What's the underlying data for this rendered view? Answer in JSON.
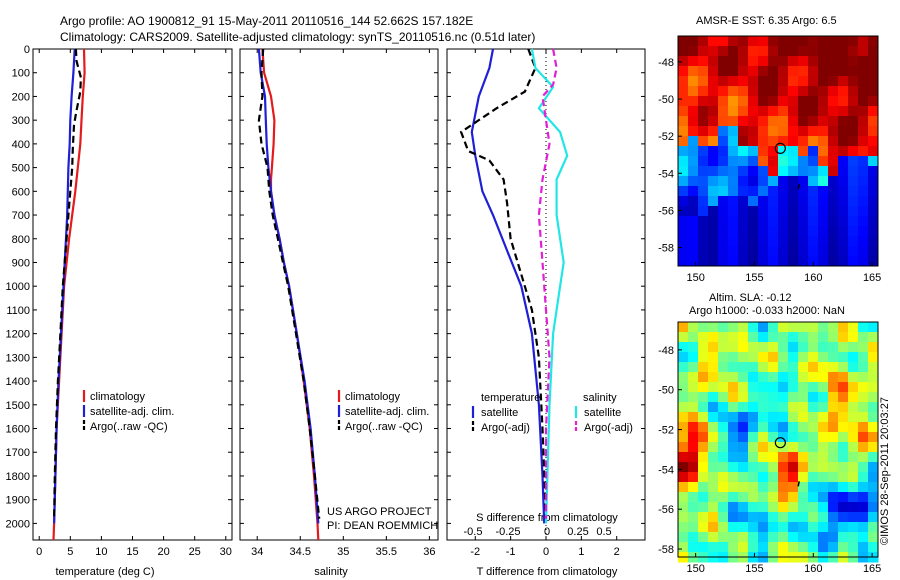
{
  "title": {
    "line1": "Argo profile: AO 1900812_91 15-May-2011 20110516_144 52.662S 157.182E",
    "line2": "Climatology: CARS2009. Satellite-adjusted climatology: synTS_20110516.nc (0.51d later)"
  },
  "colors": {
    "red": "#e41a1c",
    "blue": "#1f1fd6",
    "cyan": "#22e6e6",
    "magenta": "#e11fd6",
    "black": "#000000"
  },
  "chart_data": [
    {
      "type": "line",
      "id": "temperature",
      "xlabel": "temperature (deg C)",
      "ylabel": "",
      "xlim": [
        -1,
        31
      ],
      "ylim": [
        2070,
        0
      ],
      "xticks": [
        0,
        5,
        10,
        15,
        20,
        25,
        30
      ],
      "yticks": [
        0,
        100,
        200,
        300,
        400,
        500,
        600,
        700,
        800,
        900,
        1000,
        1100,
        1200,
        1300,
        1400,
        1500,
        1600,
        1700,
        1800,
        1900,
        2000
      ],
      "legend": [
        "climatology",
        "satellite-adj. clim.",
        "Argo(..raw -QC)"
      ],
      "series": [
        {
          "name": "climatology",
          "color": "red",
          "style": "solid",
          "points": [
            [
              7.2,
              0
            ],
            [
              7.3,
              100
            ],
            [
              7.0,
              200
            ],
            [
              6.8,
              300
            ],
            [
              6.6,
              400
            ],
            [
              6.2,
              500
            ],
            [
              5.8,
              600
            ],
            [
              5.3,
              700
            ],
            [
              4.8,
              800
            ],
            [
              4.4,
              900
            ],
            [
              4.0,
              1000
            ],
            [
              3.6,
              1200
            ],
            [
              3.2,
              1400
            ],
            [
              2.8,
              1600
            ],
            [
              2.6,
              1800
            ],
            [
              2.4,
              2000
            ],
            [
              2.3,
              2070
            ]
          ]
        },
        {
          "name": "satellite-adj. clim.",
          "color": "blue",
          "style": "solid",
          "points": [
            [
              5.7,
              0
            ],
            [
              5.5,
              100
            ],
            [
              5.2,
              200
            ],
            [
              5.0,
              300
            ],
            [
              4.9,
              400
            ],
            [
              4.7,
              500
            ],
            [
              4.6,
              600
            ],
            [
              4.5,
              700
            ],
            [
              4.3,
              800
            ],
            [
              4.1,
              900
            ],
            [
              3.9,
              1000
            ],
            [
              3.5,
              1200
            ],
            [
              3.1,
              1400
            ],
            [
              2.8,
              1600
            ],
            [
              2.6,
              1800
            ],
            [
              2.4,
              2000
            ]
          ]
        },
        {
          "name": "Argo(..raw -QC)",
          "color": "black",
          "style": "dashed",
          "points": [
            [
              5.9,
              0
            ],
            [
              6.0,
              50
            ],
            [
              6.7,
              120
            ],
            [
              6.6,
              180
            ],
            [
              6.0,
              260
            ],
            [
              5.6,
              320
            ],
            [
              5.4,
              420
            ],
            [
              5.3,
              500
            ],
            [
              5.0,
              600
            ],
            [
              4.7,
              700
            ],
            [
              4.4,
              800
            ],
            [
              4.1,
              900
            ],
            [
              3.8,
              1000
            ],
            [
              3.4,
              1200
            ],
            [
              3.0,
              1400
            ],
            [
              2.7,
              1600
            ],
            [
              2.5,
              1800
            ],
            [
              2.4,
              1980
            ]
          ]
        }
      ]
    },
    {
      "type": "line",
      "id": "salinity",
      "xlabel": "salinity",
      "ylabel": "",
      "xlim": [
        33.8,
        36.1
      ],
      "ylim": [
        2070,
        0
      ],
      "xticks": [
        34,
        34.5,
        35,
        35.5,
        36
      ],
      "legend": [
        "climatology",
        "satellite-adj. clim.",
        "Argo(..raw -QC)"
      ],
      "annotation": [
        "US ARGO PROJECT",
        "PI: DEAN ROEMMICH"
      ],
      "series": [
        {
          "name": "climatology",
          "color": "red",
          "style": "solid",
          "points": [
            [
              34.06,
              0
            ],
            [
              34.08,
              100
            ],
            [
              34.16,
              200
            ],
            [
              34.2,
              300
            ],
            [
              34.19,
              400
            ],
            [
              34.17,
              500
            ],
            [
              34.16,
              550
            ],
            [
              34.16,
              600
            ],
            [
              34.2,
              700
            ],
            [
              34.26,
              800
            ],
            [
              34.31,
              900
            ],
            [
              34.37,
              1000
            ],
            [
              34.46,
              1200
            ],
            [
              34.54,
              1400
            ],
            [
              34.61,
              1600
            ],
            [
              34.66,
              1800
            ],
            [
              34.7,
              2000
            ],
            [
              34.71,
              2070
            ]
          ]
        },
        {
          "name": "satellite-adj. clim.",
          "color": "blue",
          "style": "solid",
          "points": [
            [
              34.02,
              0
            ],
            [
              34.04,
              100
            ],
            [
              34.09,
              200
            ],
            [
              34.1,
              300
            ],
            [
              34.11,
              400
            ],
            [
              34.13,
              500
            ],
            [
              34.16,
              600
            ],
            [
              34.2,
              700
            ],
            [
              34.26,
              800
            ],
            [
              34.31,
              900
            ],
            [
              34.37,
              1000
            ],
            [
              34.46,
              1200
            ],
            [
              34.55,
              1400
            ],
            [
              34.62,
              1600
            ],
            [
              34.67,
              1800
            ],
            [
              34.71,
              2000
            ]
          ]
        },
        {
          "name": "Argo(..raw -QC)",
          "color": "black",
          "style": "dashed",
          "points": [
            [
              34.07,
              0
            ],
            [
              34.05,
              100
            ],
            [
              34.06,
              200
            ],
            [
              34.02,
              300
            ],
            [
              34.05,
              400
            ],
            [
              34.12,
              500
            ],
            [
              34.14,
              600
            ],
            [
              34.18,
              700
            ],
            [
              34.24,
              800
            ],
            [
              34.3,
              900
            ],
            [
              34.36,
              1000
            ],
            [
              34.45,
              1200
            ],
            [
              34.54,
              1400
            ],
            [
              34.61,
              1600
            ],
            [
              34.67,
              1800
            ],
            [
              34.72,
              1980
            ]
          ]
        }
      ]
    },
    {
      "type": "line",
      "id": "difference",
      "xlabel": "T difference from climatology",
      "ylabel": "",
      "xlim": [
        -2.8,
        2.8
      ],
      "ylim": [
        2070,
        0
      ],
      "xticks": [
        -2,
        -1,
        0,
        1,
        2
      ],
      "top_axis_label": "S difference from climatology",
      "top_xticks": [
        "-0.5",
        "-0.25",
        "0",
        "0.25",
        "0.5"
      ],
      "legend_header_left": "temperature",
      "legend_header_right": "salinity",
      "legend_left": [
        "satellite",
        "Argo(-adj)"
      ],
      "legend_right": [
        "satellite",
        "Argo(-adj)"
      ],
      "series": [
        {
          "name": "satellite",
          "group": "temperature",
          "color": "blue",
          "style": "solid",
          "points": [
            [
              -1.5,
              0
            ],
            [
              -1.6,
              80
            ],
            [
              -1.9,
              200
            ],
            [
              -2.1,
              350
            ],
            [
              -2.0,
              450
            ],
            [
              -1.8,
              600
            ],
            [
              -1.5,
              700
            ],
            [
              -1.1,
              850
            ],
            [
              -0.7,
              1000
            ],
            [
              -0.4,
              1200
            ],
            [
              -0.2,
              1500
            ],
            [
              -0.1,
              1800
            ],
            [
              -0.05,
              2000
            ]
          ]
        },
        {
          "name": "Argo(-adj)",
          "group": "temperature",
          "color": "black",
          "style": "dashed",
          "points": [
            [
              -0.5,
              0
            ],
            [
              -0.3,
              80
            ],
            [
              -0.6,
              180
            ],
            [
              -1.4,
              250
            ],
            [
              -2.4,
              350
            ],
            [
              -2.2,
              430
            ],
            [
              -1.6,
              470
            ],
            [
              -1.2,
              550
            ],
            [
              -1.1,
              650
            ],
            [
              -1.0,
              800
            ],
            [
              -0.8,
              900
            ],
            [
              -0.4,
              1100
            ],
            [
              -0.2,
              1300
            ],
            [
              -0.1,
              1600
            ],
            [
              0.0,
              1980
            ]
          ]
        },
        {
          "name": "satellite",
          "group": "salinity",
          "color": "cyan",
          "style": "solid",
          "points": [
            [
              -0.4,
              0
            ],
            [
              -0.3,
              80
            ],
            [
              0.2,
              160
            ],
            [
              -0.2,
              250
            ],
            [
              0.4,
              350
            ],
            [
              0.6,
              450
            ],
            [
              0.3,
              550
            ],
            [
              0.3,
              700
            ],
            [
              0.5,
              900
            ],
            [
              0.4,
              1000
            ],
            [
              0.2,
              1200
            ],
            [
              0.1,
              1500
            ],
            [
              0.0,
              2000
            ]
          ]
        },
        {
          "name": "Argo(-adj)",
          "group": "salinity",
          "color": "magenta",
          "style": "dashed",
          "points": [
            [
              0.2,
              0
            ],
            [
              0.3,
              80
            ],
            [
              0.2,
              150
            ],
            [
              -0.1,
              200
            ],
            [
              0.0,
              300
            ],
            [
              0.1,
              400
            ],
            [
              -0.1,
              550
            ],
            [
              -0.2,
              700
            ],
            [
              -0.1,
              900
            ],
            [
              0.0,
              1100
            ],
            [
              0.1,
              1300
            ],
            [
              0.0,
              1600
            ],
            [
              0.0,
              1980
            ]
          ]
        }
      ]
    },
    {
      "type": "heatmap",
      "id": "sst-map",
      "title": "AMSR-E SST: 6.35 Argo: 6.5",
      "xticks": [
        150,
        155,
        160,
        165
      ],
      "yticks": [
        -48,
        -50,
        -52,
        -54,
        -56,
        -58
      ],
      "xlim": [
        148.5,
        165.5
      ],
      "ylim": [
        -59,
        -46.6
      ],
      "marker": {
        "lon": 157.2,
        "lat": -52.66
      },
      "track": {
        "lon": 158.8,
        "lat": -54.7
      }
    },
    {
      "type": "heatmap",
      "id": "sla-map",
      "title_line1": "Altim. SLA: -0.12",
      "title_line2": "Argo h1000: -0.033 h2000: NaN",
      "xticks": [
        150,
        155,
        160,
        165
      ],
      "yticks": [
        -48,
        -50,
        -52,
        -54,
        -56,
        -58
      ],
      "xlim": [
        148.5,
        165.5
      ],
      "ylim": [
        -58.4,
        -46.6
      ],
      "marker": {
        "lon": 157.2,
        "lat": -52.66
      },
      "track": {
        "lon": 158.8,
        "lat": -54.7
      }
    }
  ],
  "credit": "©IMOS 28-Sep-2011 20:03:27"
}
